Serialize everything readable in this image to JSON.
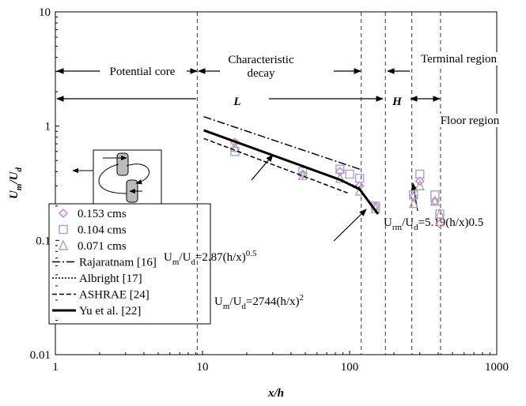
{
  "chart_data": {
    "type": "scatter",
    "xlabel": "x/h",
    "ylabel": [
      {
        "text": "U"
      },
      {
        "text": "m",
        "shift": "sub"
      },
      {
        "text": "/U"
      },
      {
        "text": "d",
        "shift": "sub"
      }
    ],
    "log_x": true,
    "log_y": true,
    "xlim": [
      1,
      1000
    ],
    "ylim": [
      0.01,
      10
    ],
    "xticks": [
      1,
      10,
      100,
      1000
    ],
    "yticks": [
      0.01,
      0.1,
      1,
      10
    ],
    "vlines": [
      9.2,
      120,
      175,
      265,
      415
    ],
    "regions": [
      "Potential core",
      "Characteristic",
      "decay",
      "Terminal region",
      "L",
      "H",
      "Floor region"
    ],
    "series": [
      {
        "name": "0.153 cms",
        "color": "#e07cc0",
        "marker": "diamond",
        "x": [
          16.6,
          48,
          86,
          117,
          150,
          272,
          300,
          380,
          410
        ],
        "values": [
          0.72,
          0.38,
          0.4,
          0.3,
          0.2,
          0.24,
          0.33,
          0.22,
          0.14
        ]
      },
      {
        "name": "0.104 cms",
        "color": "#a9a6e8",
        "marker": "square",
        "x": [
          16.6,
          48,
          86,
          100,
          117,
          150,
          272,
          300,
          380,
          410
        ],
        "values": [
          0.6,
          0.4,
          0.42,
          0.38,
          0.35,
          0.2,
          0.25,
          0.38,
          0.25,
          0.17
        ]
      },
      {
        "name": "0.071 cms",
        "color": "#aaaaaa",
        "marker": "triangle",
        "x": [
          16.6,
          48,
          86,
          117,
          150,
          272,
          300,
          380,
          410
        ],
        "values": [
          0.65,
          0.37,
          0.35,
          0.27,
          0.19,
          0.21,
          0.3,
          0.22,
          0.17
        ]
      },
      {
        "name": "Rajaratnam [16]",
        "color": "#000000",
        "dash": "dashdot",
        "x": [
          10.2,
          117
        ],
        "values": [
          1.21,
          0.42
        ]
      },
      {
        "name": "Albright [17]",
        "color": "#000000",
        "dash": "dotted",
        "x": [
          10.2,
          117
        ],
        "values": [
          0.92,
          0.29
        ]
      },
      {
        "name": "ASHRAE [24]",
        "color": "#000000",
        "dash": "dashed",
        "x": [
          10.2,
          97
        ],
        "values": [
          0.78,
          0.26
        ]
      },
      {
        "name": "Yu et al. [22]",
        "color": "#000000",
        "dash": "solid",
        "x": [
          10.2,
          86,
          117,
          156
        ],
        "values": [
          0.92,
          0.34,
          0.28,
          0.17
        ]
      }
    ],
    "annotations": [
      [
        {
          "text": "U"
        },
        {
          "text": "m",
          "shift": "sub"
        },
        {
          "text": "/U"
        },
        {
          "text": "d",
          "shift": "sub"
        },
        {
          "text": "=2.87(h/x)"
        },
        {
          "text": "0.5",
          "shift": "sup"
        }
      ],
      [
        {
          "text": "U"
        },
        {
          "text": "m",
          "shift": "sub"
        },
        {
          "text": "/U"
        },
        {
          "text": "d",
          "shift": "sub"
        },
        {
          "text": "=2744(h/x)"
        },
        {
          "text": "2",
          "shift": "sup"
        }
      ],
      [
        {
          "text": "U"
        },
        {
          "text": "rm",
          "shift": "sub"
        },
        {
          "text": "/U"
        },
        {
          "text": "d",
          "shift": "sub"
        },
        {
          "text": "=5.19(h/x)0.5"
        }
      ]
    ]
  }
}
